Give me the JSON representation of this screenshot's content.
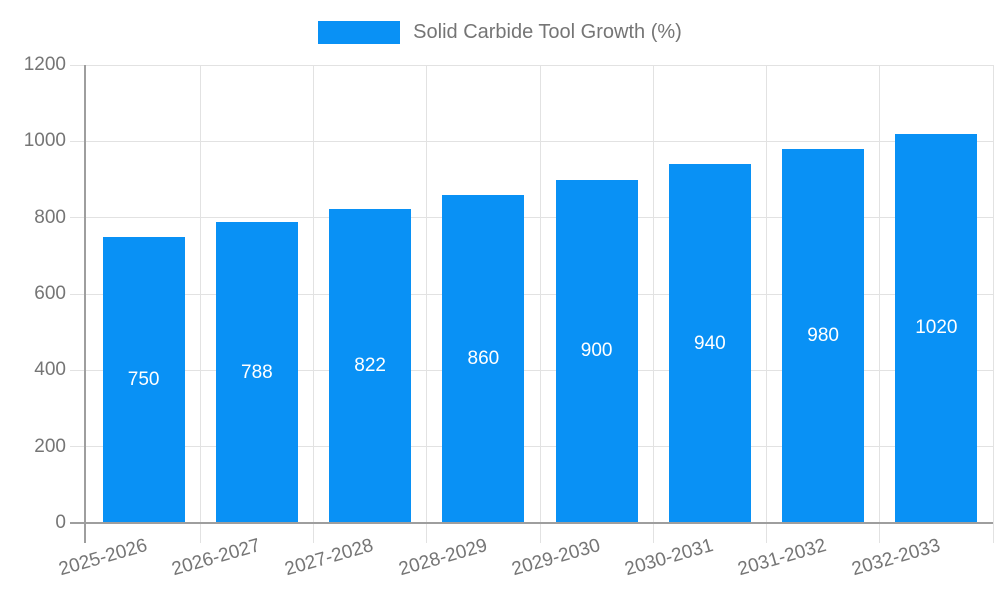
{
  "chart_data": {
    "type": "bar",
    "title": "Solid Carbide Tool Growth (%)",
    "categories": [
      "2025-2026",
      "2026-2027",
      "2027-2028",
      "2028-2029",
      "2029-2030",
      "2030-2031",
      "2031-2032",
      "2032-2033"
    ],
    "values": [
      750,
      788,
      822,
      860,
      900,
      940,
      980,
      1020
    ],
    "xlabel": "",
    "ylabel": "",
    "ylim": [
      0,
      1200
    ],
    "yticks": [
      0,
      200,
      400,
      600,
      800,
      1000,
      1200
    ],
    "grid": true,
    "legend_position": "top-center",
    "bar_color": "#0991F5",
    "bar_label_color": "#FFFFFF",
    "axis_text_color": "#757575",
    "axis_line_color": "#9E9E9E",
    "grid_color": "#E2E2E2",
    "background_color": "#FFFFFF"
  }
}
